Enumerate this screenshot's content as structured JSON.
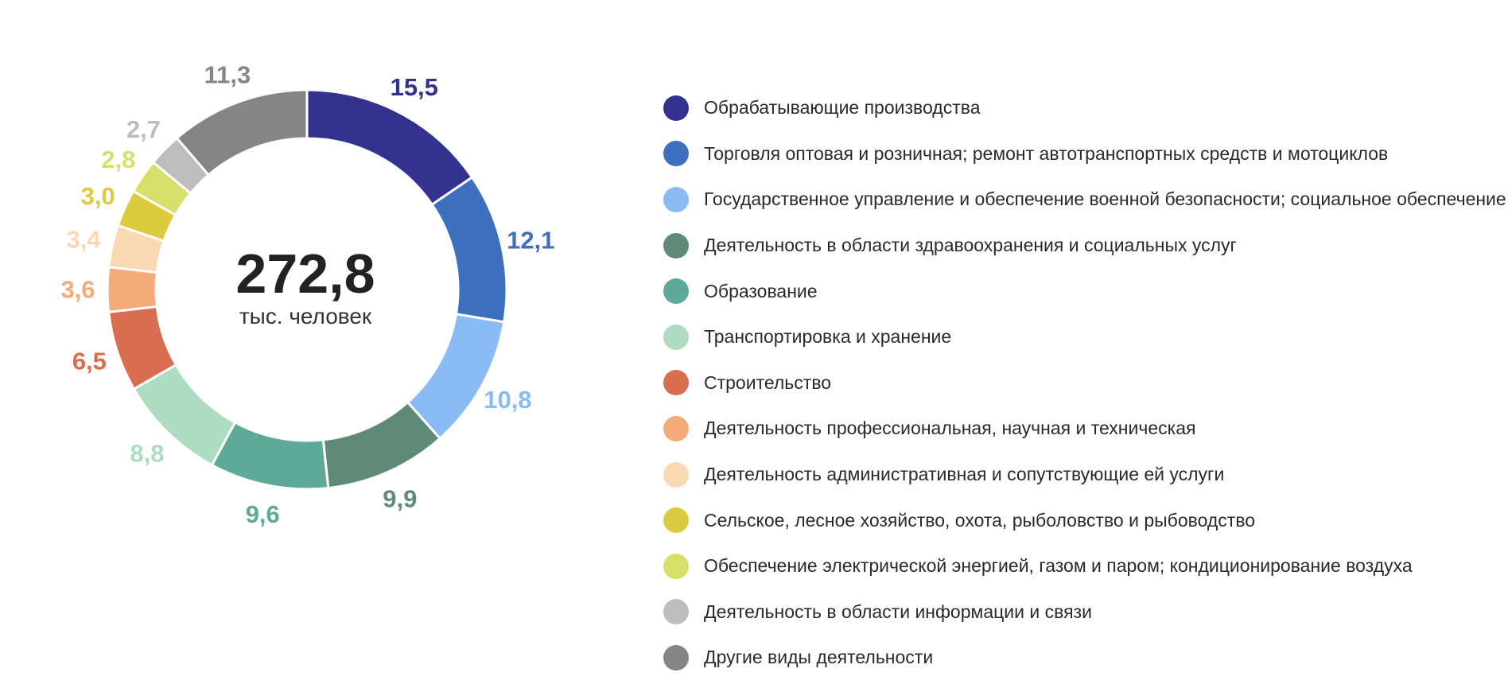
{
  "chart_data": {
    "type": "pie",
    "donut": true,
    "total": {
      "value": "272,8",
      "unit": "тыс. человек"
    },
    "slices": [
      {
        "label": "Обрабатывающие производства",
        "value": 15.5,
        "display": "15,5",
        "color": "#33338f"
      },
      {
        "label": "Торговля оптовая и розничная; ремонт автотранспортных средств и мотоциклов",
        "value": 12.1,
        "display": "12,1",
        "color": "#3f70c0"
      },
      {
        "label": "Государственное управление и обеспечение военной безопасности; социальное обеспечение",
        "value": 10.8,
        "display": "10,8",
        "color": "#8bbbf5"
      },
      {
        "label": "Деятельность в области здравоохранения и социальных услуг",
        "value": 9.9,
        "display": "9,9",
        "color": "#608a78"
      },
      {
        "label": "Образование",
        "value": 9.6,
        "display": "9,6",
        "color": "#5fa998"
      },
      {
        "label": "Транспортировка и хранение",
        "value": 8.8,
        "display": "8,8",
        "color": "#addcc0"
      },
      {
        "label": "Строительство",
        "value": 6.5,
        "display": "6,5",
        "color": "#d86e4f"
      },
      {
        "label": "Деятельность профессиональная, научная и техническая",
        "value": 3.6,
        "display": "3,6",
        "color": "#f5ab78"
      },
      {
        "label": "Деятельность административная и сопутствующие ей услуги",
        "value": 3.4,
        "display": "3,4",
        "color": "#fad8b3"
      },
      {
        "label": "Сельское, лесное хозяйство, охота, рыболовство и рыбоводство",
        "value": 3.0,
        "display": "3,0",
        "color": "#dccb3e"
      },
      {
        "label": "Обеспечение электрической энергией, газом и паром; кондиционирование воздуха",
        "value": 2.8,
        "display": "2,8",
        "color": "#d6df6a"
      },
      {
        "label": "Деятельность в области информации и связи",
        "value": 2.7,
        "display": "2,7",
        "color": "#bdbdbd"
      },
      {
        "label": "Другие виды деятельности",
        "value": 11.3,
        "display": "11,3",
        "color": "#858585"
      }
    ],
    "legend_position": "right"
  }
}
